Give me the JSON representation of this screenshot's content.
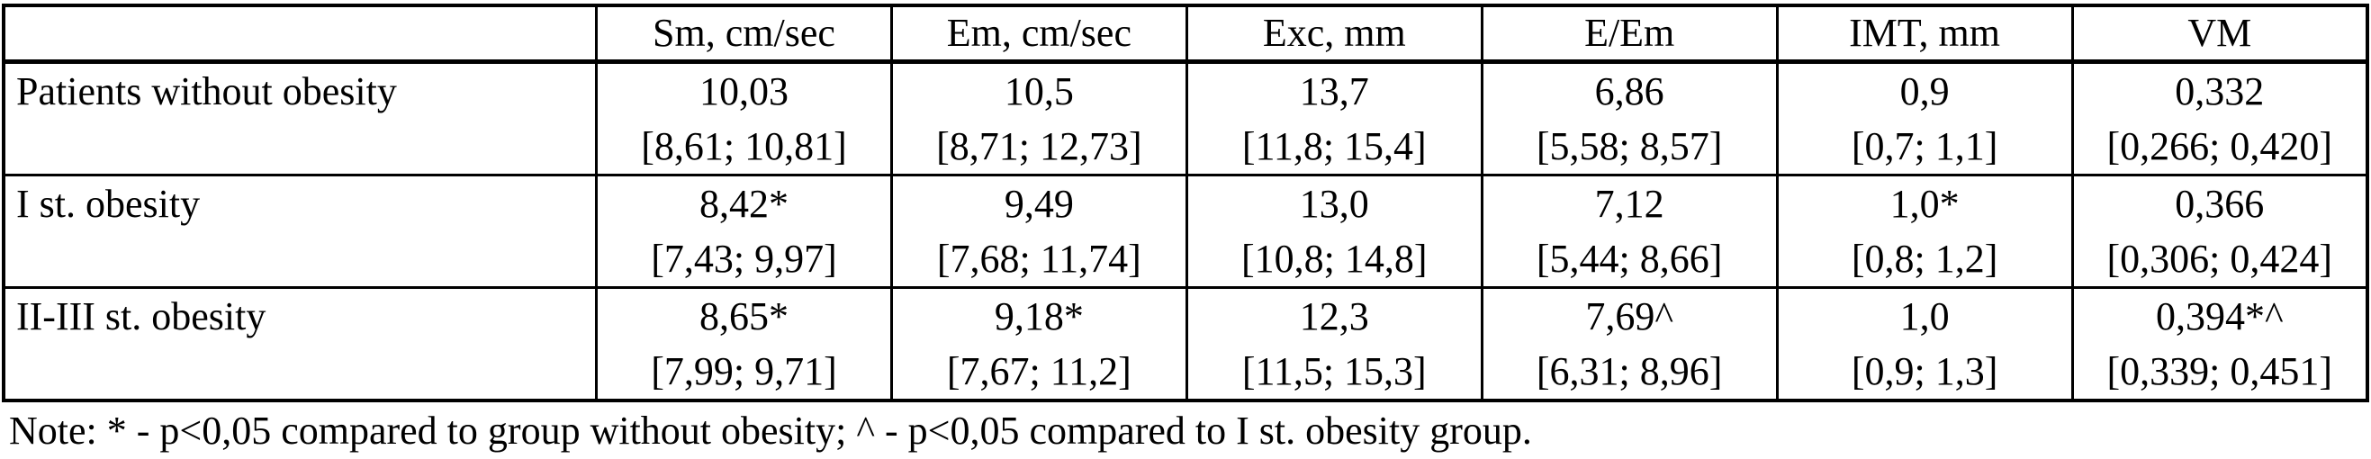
{
  "table": {
    "headers": [
      "Sm, cm/sec",
      "Em, cm/sec",
      "Exc, mm",
      "E/Em",
      "IMT, mm",
      "VM"
    ],
    "rows": [
      {
        "label": "Patients without obesity",
        "cells": [
          {
            "value": "10,03",
            "ci": "[8,61; 10,81]"
          },
          {
            "value": "10,5",
            "ci": "[8,71; 12,73]"
          },
          {
            "value": "13,7",
            "ci": "[11,8; 15,4]"
          },
          {
            "value": "6,86",
            "ci": "[5,58; 8,57]"
          },
          {
            "value": "0,9",
            "ci": "[0,7; 1,1]"
          },
          {
            "value": "0,332",
            "ci": "[0,266; 0,420]"
          }
        ]
      },
      {
        "label": "I st. obesity",
        "cells": [
          {
            "value": "8,42*",
            "ci": "[7,43; 9,97]"
          },
          {
            "value": "9,49",
            "ci": "[7,68; 11,74]"
          },
          {
            "value": "13,0",
            "ci": "[10,8; 14,8]"
          },
          {
            "value": "7,12",
            "ci": "[5,44; 8,66]"
          },
          {
            "value": "1,0*",
            "ci": "[0,8; 1,2]"
          },
          {
            "value": "0,366",
            "ci": "[0,306; 0,424]"
          }
        ]
      },
      {
        "label": "II-III st. obesity",
        "cells": [
          {
            "value": "8,65*",
            "ci": "[7,99; 9,71]"
          },
          {
            "value": "9,18*",
            "ci": "[7,67; 11,2]"
          },
          {
            "value": "12,3",
            "ci": "[11,5; 15,3]"
          },
          {
            "value": "7,69^",
            "ci": "[6,31; 8,96]"
          },
          {
            "value": "1,0",
            "ci": "[0,9; 1,3]"
          },
          {
            "value": "0,394*^",
            "ci": "[0,339; 0,451]"
          }
        ]
      }
    ]
  },
  "note": "Note: * - p<0,05 compared to group without obesity; ^ - p<0,05 compared to I st. obesity group.",
  "colors": {
    "text": "#000000",
    "border": "#000000",
    "background": "#ffffff"
  }
}
